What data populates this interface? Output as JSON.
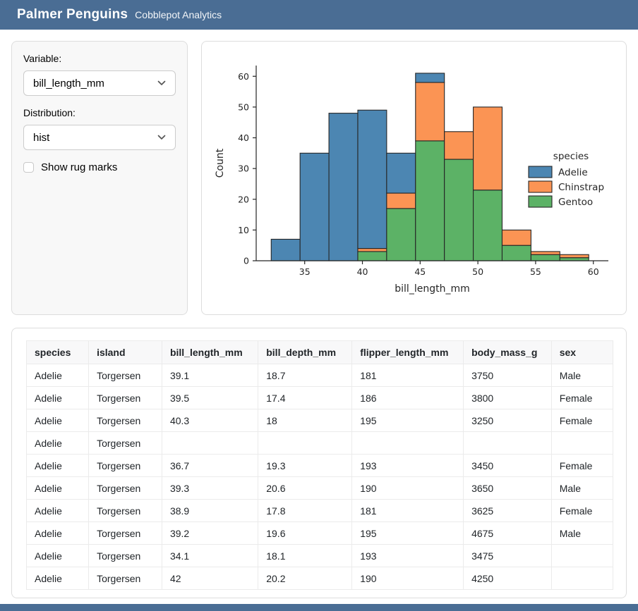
{
  "header": {
    "title": "Palmer Penguins",
    "subtitle": "Cobblepot Analytics"
  },
  "sidebar": {
    "variable_label": "Variable:",
    "variable_value": "bill_length_mm",
    "distribution_label": "Distribution:",
    "distribution_value": "hist",
    "rug_label": "Show rug marks",
    "rug_checked": false
  },
  "chart_data": {
    "type": "bar",
    "subtype": "stacked-histogram",
    "title": "",
    "xlabel": "bill_length_mm",
    "ylabel": "Count",
    "xlim": [
      30.8,
      61.3
    ],
    "ylim": [
      0,
      63.5
    ],
    "xticks": [
      35,
      40,
      45,
      50,
      55,
      60
    ],
    "yticks": [
      0,
      10,
      20,
      30,
      40,
      50,
      60
    ],
    "grid": false,
    "bin_edges": [
      32.1,
      34.6,
      37.1,
      39.6,
      42.1,
      44.6,
      47.1,
      49.6,
      52.1,
      54.6,
      57.1,
      59.6
    ],
    "series": [
      {
        "name": "Gentoo",
        "color": "#5cb266",
        "values": [
          0,
          0,
          0,
          3,
          17,
          39,
          33,
          23,
          5,
          2,
          1
        ]
      },
      {
        "name": "Chinstrap",
        "color": "#fb9454",
        "values": [
          0,
          0,
          0,
          1,
          5,
          19,
          9,
          27,
          5,
          1,
          1
        ]
      },
      {
        "name": "Adelie",
        "color": "#4c86b2",
        "values": [
          7,
          35,
          48,
          45,
          13,
          3,
          0,
          0,
          0,
          0,
          0
        ]
      }
    ],
    "bar_totals": [
      7,
      35,
      48,
      49,
      35,
      61,
      42,
      50,
      10,
      3,
      2
    ],
    "edge_color": "#262626",
    "legend": {
      "title": "species",
      "position": "right",
      "entries": [
        {
          "label": "Adelie",
          "color": "#4c86b2"
        },
        {
          "label": "Chinstrap",
          "color": "#fb9454"
        },
        {
          "label": "Gentoo",
          "color": "#5cb266"
        }
      ]
    }
  },
  "table": {
    "headers": [
      "species",
      "island",
      "bill_length_mm",
      "bill_depth_mm",
      "flipper_length_mm",
      "body_mass_g",
      "sex"
    ],
    "rows": [
      [
        "Adelie",
        "Torgersen",
        "39.1",
        "18.7",
        "181",
        "3750",
        "Male"
      ],
      [
        "Adelie",
        "Torgersen",
        "39.5",
        "17.4",
        "186",
        "3800",
        "Female"
      ],
      [
        "Adelie",
        "Torgersen",
        "40.3",
        "18",
        "195",
        "3250",
        "Female"
      ],
      [
        "Adelie",
        "Torgersen",
        "",
        "",
        "",
        "",
        ""
      ],
      [
        "Adelie",
        "Torgersen",
        "36.7",
        "19.3",
        "193",
        "3450",
        "Female"
      ],
      [
        "Adelie",
        "Torgersen",
        "39.3",
        "20.6",
        "190",
        "3650",
        "Male"
      ],
      [
        "Adelie",
        "Torgersen",
        "38.9",
        "17.8",
        "181",
        "3625",
        "Female"
      ],
      [
        "Adelie",
        "Torgersen",
        "39.2",
        "19.6",
        "195",
        "4675",
        "Male"
      ],
      [
        "Adelie",
        "Torgersen",
        "34.1",
        "18.1",
        "193",
        "3475",
        ""
      ],
      [
        "Adelie",
        "Torgersen",
        "42",
        "20.2",
        "190",
        "4250",
        ""
      ]
    ]
  },
  "colors": {
    "brand": "#4a6d94",
    "card_border": "#dddddd",
    "sidebar_bg": "#f8f8f8"
  }
}
